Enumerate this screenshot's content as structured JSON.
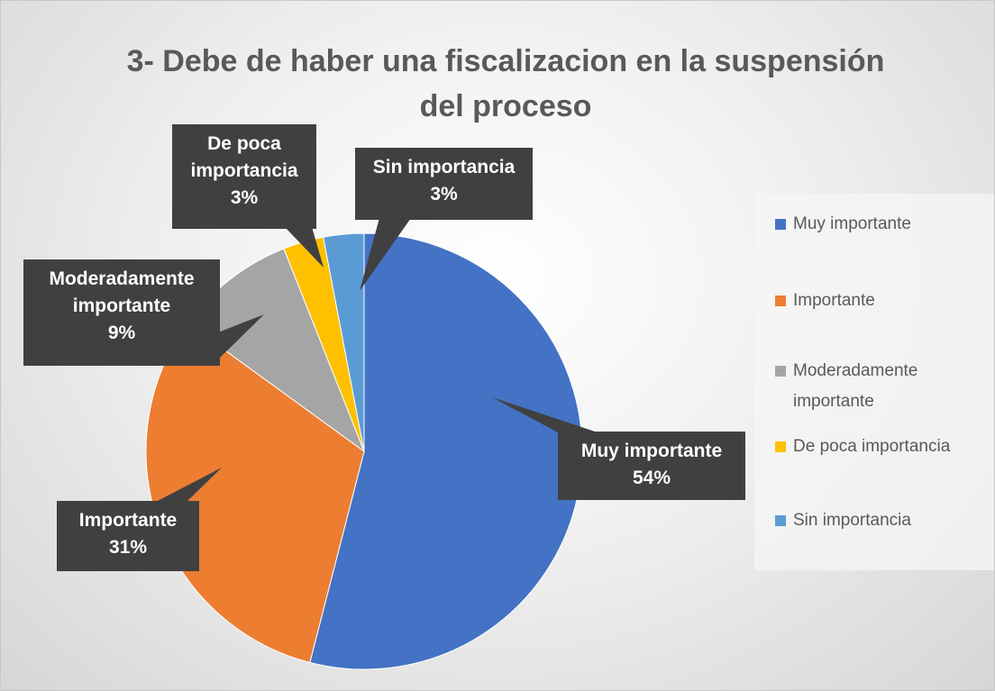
{
  "chart_data": {
    "type": "pie",
    "title": "3- Debe de haber una fiscalizacion en la suspensión del proceso",
    "categories": [
      "Muy importante",
      "Importante",
      "Moderadamente importante",
      "De poca importancia",
      "Sin importancia"
    ],
    "values": [
      54,
      31,
      9,
      3,
      3
    ],
    "value_labels": [
      "54%",
      "31%",
      "9%",
      "3%",
      "3%"
    ],
    "colors": [
      "#4472c4",
      "#ed7d31",
      "#a5a5a5",
      "#ffc000",
      "#5b9bd5"
    ],
    "legend": "right"
  }
}
